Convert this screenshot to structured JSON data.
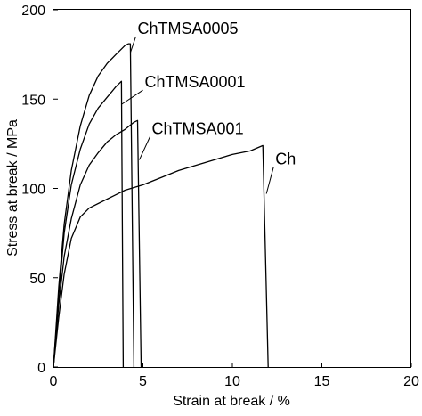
{
  "chart_data": {
    "type": "line",
    "title": "",
    "xlabel": "Strain at break / %",
    "ylabel": "Stress at break / MPa",
    "xlim": [
      0,
      20
    ],
    "ylim": [
      0,
      200
    ],
    "xticks": [
      0,
      5,
      10,
      15,
      20
    ],
    "yticks": [
      0,
      50,
      100,
      150,
      200
    ],
    "grid": false,
    "legend": "none",
    "line_color": "#000000",
    "series": [
      {
        "name": "ChTMSA0005",
        "points": [
          [
            0,
            0
          ],
          [
            0.3,
            45
          ],
          [
            0.6,
            80
          ],
          [
            1.0,
            110
          ],
          [
            1.5,
            135
          ],
          [
            2.0,
            152
          ],
          [
            2.5,
            163
          ],
          [
            3.0,
            170
          ],
          [
            3.5,
            175
          ],
          [
            4.0,
            180
          ],
          [
            4.2,
            181
          ],
          [
            4.3,
            181
          ],
          [
            4.5,
            0
          ]
        ]
      },
      {
        "name": "ChTMSA0001",
        "points": [
          [
            0,
            0
          ],
          [
            0.3,
            40
          ],
          [
            0.6,
            75
          ],
          [
            1.0,
            102
          ],
          [
            1.5,
            122
          ],
          [
            2.0,
            136
          ],
          [
            2.5,
            145
          ],
          [
            3.0,
            151
          ],
          [
            3.5,
            157
          ],
          [
            3.7,
            159
          ],
          [
            3.8,
            160
          ],
          [
            3.9,
            0
          ]
        ]
      },
      {
        "name": "ChTMSA001",
        "points": [
          [
            0,
            0
          ],
          [
            0.3,
            35
          ],
          [
            0.6,
            62
          ],
          [
            1.0,
            83
          ],
          [
            1.5,
            102
          ],
          [
            2.0,
            113
          ],
          [
            2.5,
            120
          ],
          [
            3.0,
            126
          ],
          [
            3.5,
            130
          ],
          [
            4.0,
            133
          ],
          [
            4.5,
            137
          ],
          [
            4.7,
            138
          ],
          [
            4.9,
            0
          ]
        ]
      },
      {
        "name": "Ch",
        "points": [
          [
            0,
            0
          ],
          [
            0.3,
            28
          ],
          [
            0.6,
            52
          ],
          [
            1.0,
            72
          ],
          [
            1.5,
            84
          ],
          [
            2.0,
            89
          ],
          [
            3.0,
            94
          ],
          [
            4.0,
            99
          ],
          [
            5.0,
            102
          ],
          [
            6.0,
            106
          ],
          [
            7.0,
            110
          ],
          [
            8.0,
            113
          ],
          [
            9.0,
            116
          ],
          [
            10.0,
            119
          ],
          [
            11.0,
            121
          ],
          [
            11.7,
            124
          ],
          [
            12.0,
            0
          ]
        ]
      }
    ],
    "annotations": [
      {
        "text": "ChTMSA0005",
        "series": 0,
        "label_at": [
          4.6,
          185
        ],
        "points_to": [
          4.3,
          176
        ]
      },
      {
        "text": "ChTMSA0001",
        "series": 1,
        "label_at": [
          5.0,
          155
        ],
        "points_to": [
          3.8,
          147
        ]
      },
      {
        "text": "ChTMSA001",
        "series": 2,
        "label_at": [
          5.4,
          129
        ],
        "points_to": [
          4.8,
          116
        ]
      },
      {
        "text": "Ch",
        "series": 3,
        "label_at": [
          12.3,
          112
        ],
        "points_to": [
          11.9,
          97
        ]
      }
    ]
  }
}
